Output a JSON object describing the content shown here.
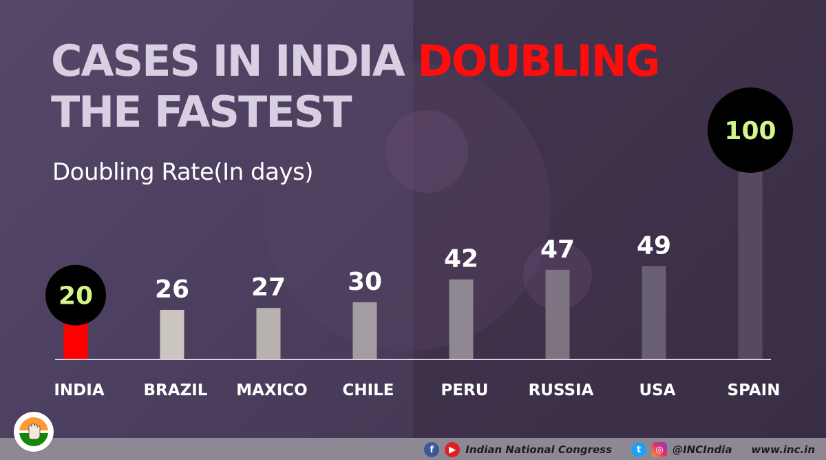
{
  "header": {
    "title_part1": "CASES IN INDIA ",
    "title_highlight": "DOUBLING",
    "title_part2": "THE FASTEST",
    "subtitle": "Doubling Rate(In days)"
  },
  "chart_data": {
    "type": "bar",
    "title": "CASES IN INDIA DOUBLING THE FASTEST",
    "subtitle": "Doubling Rate(In days)",
    "ylabel": "Doubling Rate (In days)",
    "xlabel": "",
    "ylim": [
      0,
      100
    ],
    "categories": [
      "INDIA",
      "BRAZIL",
      "MAXICO",
      "CHILE",
      "PERU",
      "RUSSIA",
      "USA",
      "SPAIN"
    ],
    "values": [
      20,
      26,
      27,
      30,
      42,
      47,
      49,
      100
    ],
    "highlighted": [
      "INDIA",
      "SPAIN"
    ],
    "colors": {
      "india_bar": "#ff0000",
      "highlight_value": "#d4f58a",
      "value_text": "#ffffff",
      "badge_bg": "#000000",
      "axis_line": "#d8d0e0",
      "bar_gradient_start": "#cac5be",
      "bar_gradient_end": "#564a63"
    }
  },
  "footer": {
    "org_name": "Indian National Congress",
    "handle": "@INCIndia",
    "website": "www.inc.in",
    "icons": [
      "facebook-icon",
      "youtube-icon",
      "twitter-icon",
      "instagram-icon"
    ]
  }
}
